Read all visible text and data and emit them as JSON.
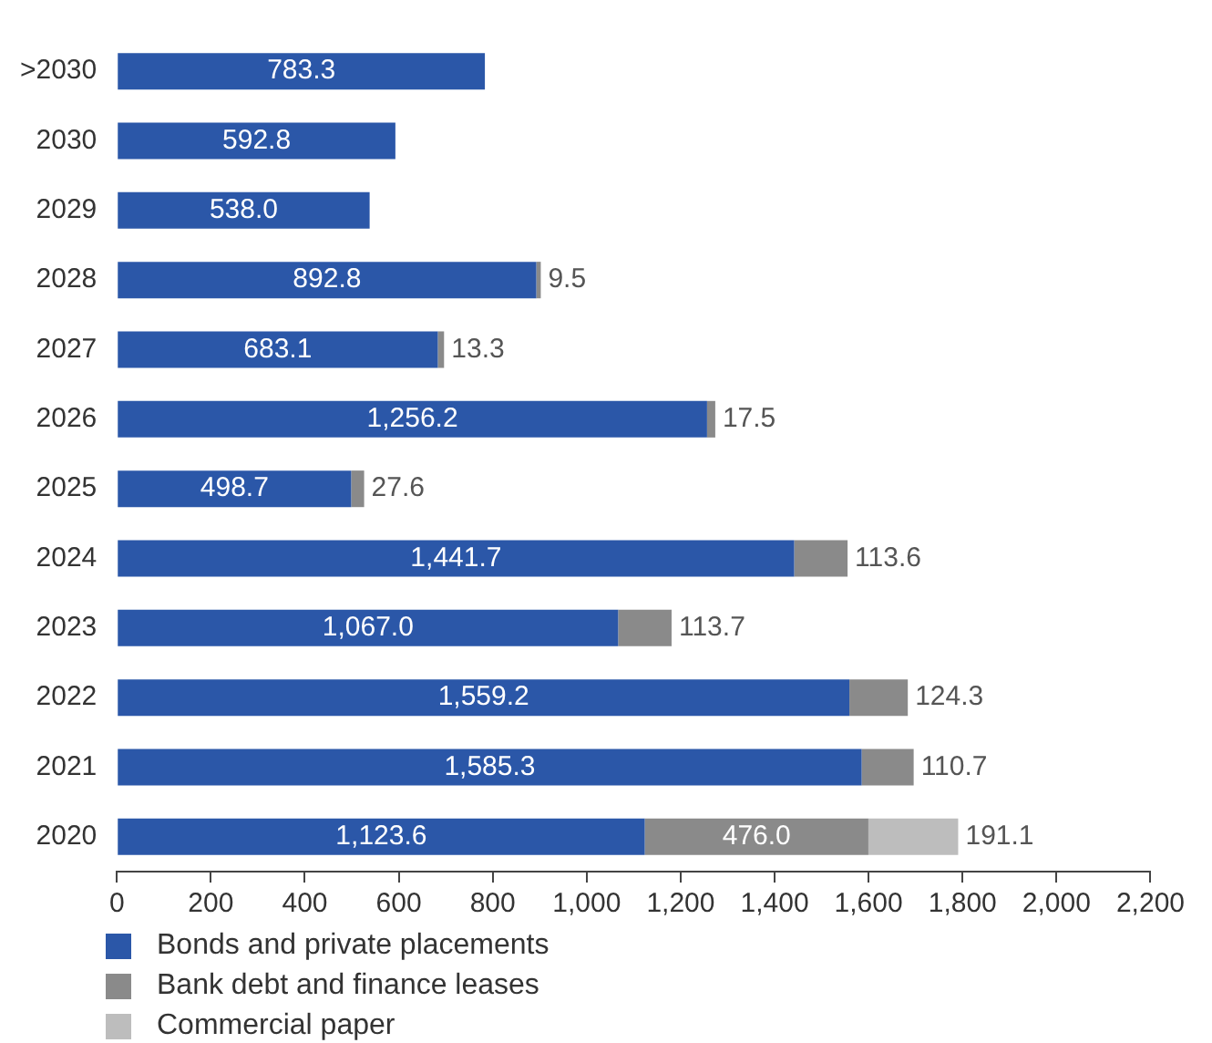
{
  "chart_data": {
    "type": "bar",
    "orientation": "horizontal",
    "stacked": true,
    "grid": false,
    "legend": "bottom left",
    "categories": [
      ">2030",
      "2030",
      "2029",
      "2028",
      "2027",
      "2026",
      "2025",
      "2024",
      "2023",
      "2022",
      "2021",
      "2020"
    ],
    "xlim": [
      0,
      2200
    ],
    "xticks": [
      0,
      200,
      400,
      600,
      800,
      {
        "value": 1000,
        "label": "1,000"
      },
      {
        "value": 1200,
        "label": "1,200"
      },
      {
        "value": 1400,
        "label": "1,400"
      },
      {
        "value": 1600,
        "label": "1,600"
      },
      {
        "value": 1800,
        "label": "1,800"
      },
      {
        "value": 2000,
        "label": "2,000"
      },
      {
        "value": 2200,
        "label": "2,200"
      }
    ],
    "series": [
      {
        "name": "Bonds and private placements",
        "color": "#2b57a8",
        "values": [
          783.3,
          592.8,
          538.0,
          892.8,
          683.1,
          1256.2,
          498.7,
          1441.7,
          1067.0,
          1559.2,
          1585.3,
          1123.6
        ],
        "value_labels": [
          "783.3",
          "592.8",
          "538.0",
          "892.8",
          "683.1",
          "1,256.2",
          "498.7",
          "1,441.7",
          "1,067.0",
          "1,559.2",
          "1,585.3",
          "1,123.6"
        ]
      },
      {
        "name": "Bank debt and finance leases",
        "color": "#8a8a8a",
        "values": [
          null,
          null,
          null,
          9.5,
          13.3,
          17.5,
          27.6,
          113.6,
          113.7,
          124.3,
          110.7,
          476.0
        ],
        "value_labels": [
          null,
          null,
          null,
          "9.5",
          "13.3",
          "17.5",
          "27.6",
          "113.6",
          "113.7",
          "124.3",
          "110.7",
          "476.0"
        ]
      },
      {
        "name": "Commercial paper",
        "color": "#bdbdbd",
        "values": [
          null,
          null,
          null,
          null,
          null,
          null,
          null,
          null,
          null,
          null,
          null,
          191.1
        ],
        "value_labels": [
          null,
          null,
          null,
          null,
          null,
          null,
          null,
          null,
          null,
          null,
          null,
          "191.1"
        ]
      }
    ]
  }
}
